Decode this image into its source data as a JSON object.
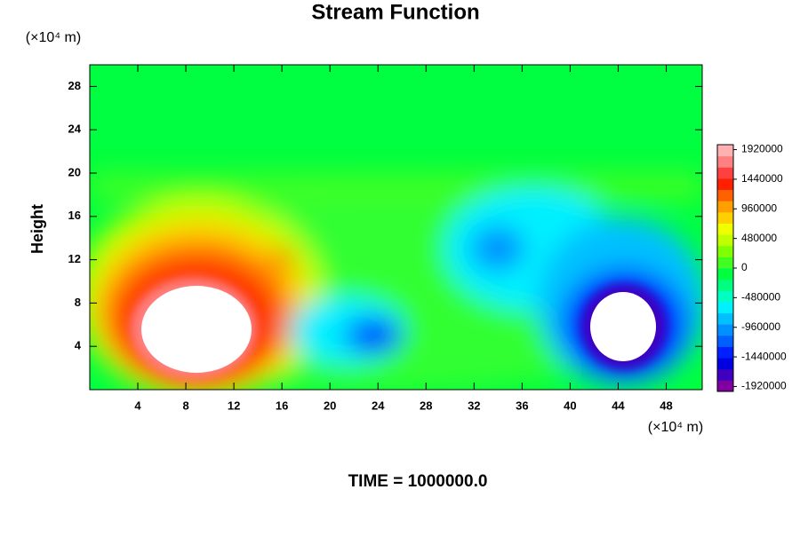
{
  "chart_data": {
    "type": "contour",
    "title": "Stream Function",
    "ylabel": "Height",
    "x_unit": "(×10⁴ m)",
    "y_unit": "(×10⁴ m)",
    "annotation": "TIME = 1000000.0",
    "xlim": [
      0,
      51
    ],
    "xticks": [
      4,
      8,
      12,
      16,
      20,
      24,
      28,
      32,
      36,
      40,
      44,
      48
    ],
    "ylim": [
      0,
      30
    ],
    "yticks": [
      4,
      8,
      12,
      16,
      20,
      24,
      28
    ],
    "colorbar": {
      "lim": [
        -2000000,
        2000000
      ],
      "ticks": [
        1920000,
        1440000,
        960000,
        480000,
        0,
        -480000,
        -960000,
        -1440000,
        -1920000
      ],
      "colors": [
        "#8000a0",
        "#4000c0",
        "#0000e0",
        "#0020ff",
        "#0060ff",
        "#0090ff",
        "#00c0ff",
        "#00f0ff",
        "#00ffc0",
        "#00ff80",
        "#00ff40",
        "#40ff20",
        "#80ff00",
        "#c0ff00",
        "#f0ff00",
        "#ffd000",
        "#ffa000",
        "#ff6000",
        "#ff2000",
        "#ff4040",
        "#ff8080",
        "#ffb0b0"
      ]
    }
  }
}
